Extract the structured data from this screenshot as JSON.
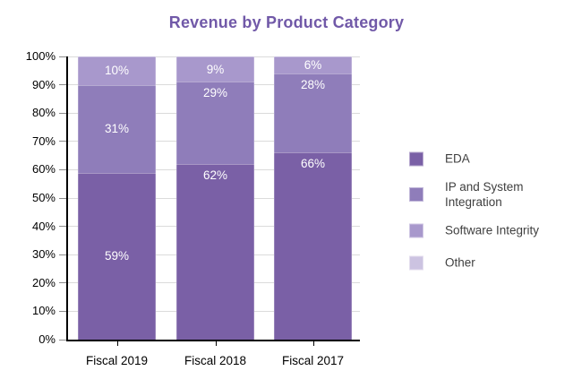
{
  "colors": {
    "title": "#7159A8",
    "axis": "#000000",
    "gridline": "#DBDBDB",
    "bar_label": "#FFFFFF",
    "eda": "#7A60A6",
    "ip_and_system_integration": "#8F7DBA",
    "software_integrity": "#A898CC",
    "other": "#CCC3E1"
  },
  "chart_data": {
    "type": "bar",
    "stacked": true,
    "unit": "percent",
    "title": "Revenue by Product Category",
    "xlabel": "",
    "ylabel": "",
    "categories": [
      "Fiscal 2019",
      "Fiscal 2018",
      "Fiscal 2017"
    ],
    "series": [
      {
        "name": "EDA",
        "values": [
          59,
          62,
          66
        ],
        "color": "#7A60A6"
      },
      {
        "name": "IP and System Integration",
        "values": [
          31,
          29,
          28
        ],
        "color": "#8F7DBA"
      },
      {
        "name": "Software Integrity",
        "values": [
          10,
          9,
          6
        ],
        "color": "#A898CC"
      },
      {
        "name": "Other",
        "values": [
          0,
          0,
          0
        ],
        "color": "#CCC3E1"
      }
    ],
    "bar_labels": [
      [
        "59%",
        "31%",
        "10%"
      ],
      [
        "62%",
        "29%",
        "9%"
      ],
      [
        "66%",
        "28%",
        "6%"
      ]
    ],
    "ylim": [
      0,
      100
    ],
    "ytick_step": 10,
    "ytick_labels": [
      "0%",
      "10%",
      "20%",
      "30%",
      "40%",
      "50%",
      "60%",
      "70%",
      "80%",
      "90%",
      "100%"
    ],
    "grid": true,
    "legend_position": "right",
    "legend": [
      "EDA",
      "IP and System Integration",
      "Software Integrity",
      "Other"
    ]
  }
}
